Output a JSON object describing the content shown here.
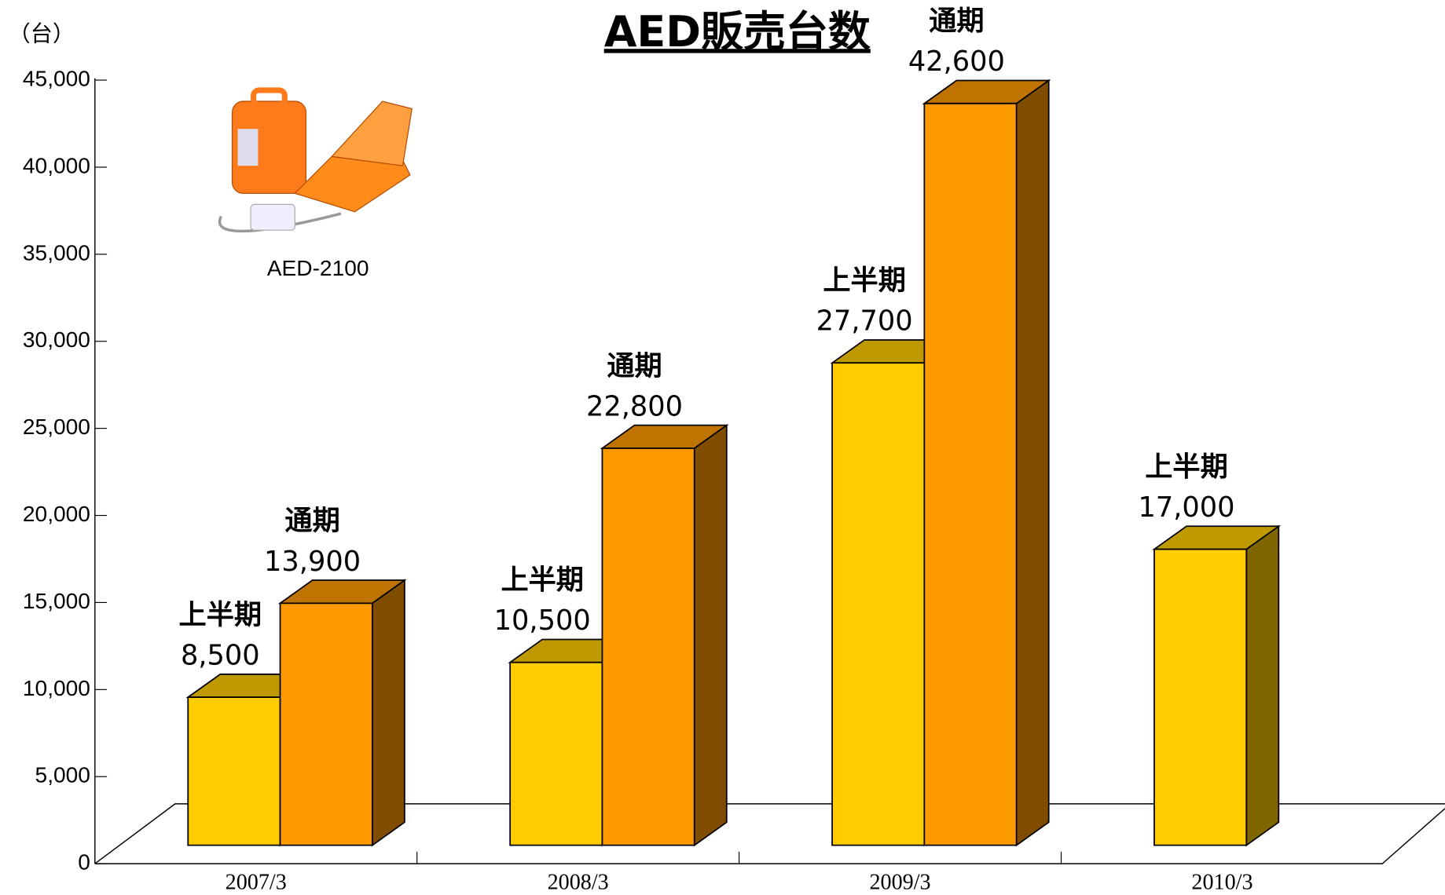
{
  "chart_data": {
    "type": "bar3d",
    "title": "AED販売台数",
    "y_axis_label": "（台）",
    "image_caption": "AED-2100",
    "categories": [
      "2007/3",
      "2008/3",
      "2009/3",
      "2010/3"
    ],
    "series": [
      {
        "name": "上半期",
        "color": "#ffcc00",
        "values": [
          8500,
          10500,
          27700,
          17000
        ],
        "value_labels": [
          "8,500",
          "10,500",
          "27,700",
          "17,000"
        ]
      },
      {
        "name": "通期",
        "color": "#ff9900",
        "values": [
          13900,
          22800,
          42600,
          null
        ],
        "value_labels": [
          "13,900",
          "22,800",
          "42,600",
          null
        ]
      }
    ],
    "ylim": [
      0,
      45000
    ],
    "yticks": [
      0,
      {
        "value": 5000,
        "label": "5,000"
      },
      {
        "value": 10000,
        "label": "10,000"
      },
      {
        "value": 15000,
        "label": "15,000"
      },
      {
        "value": 20000,
        "label": "20,000"
      },
      {
        "value": 25000,
        "label": "25,000"
      },
      {
        "value": 30000,
        "label": "30,000"
      },
      {
        "value": 35000,
        "label": "35,000"
      },
      {
        "value": 40000,
        "label": "40,000"
      },
      {
        "value": 45000,
        "label": "45,000"
      }
    ]
  }
}
